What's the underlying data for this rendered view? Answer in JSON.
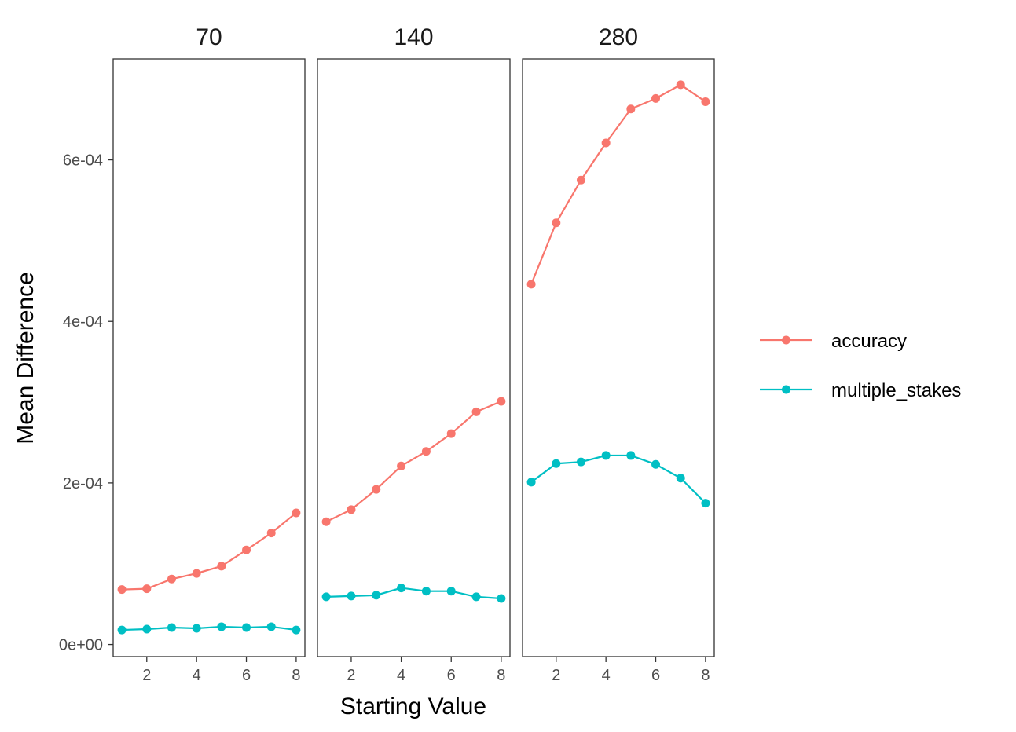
{
  "chart_data": {
    "type": "line",
    "xlabel": "Starting Value",
    "ylabel": "Mean Difference",
    "x": [
      1,
      2,
      3,
      4,
      5,
      6,
      7,
      8
    ],
    "xticks": [
      "2",
      "4",
      "6",
      "8"
    ],
    "xtick_values": [
      2,
      4,
      6,
      8
    ],
    "xlim": [
      0.65,
      8.35
    ],
    "ylim": [
      -1.5e-05,
      0.000725
    ],
    "yticks": [
      "0e+00",
      "2e-04",
      "4e-04",
      "6e-04"
    ],
    "ytick_values": [
      0,
      0.0002,
      0.0004,
      0.0006
    ],
    "grid": false,
    "legend_position": "right",
    "series_meta": [
      {
        "name": "accuracy",
        "color": "#F8766D"
      },
      {
        "name": "multiple_stakes",
        "color": "#00BFC4"
      }
    ],
    "panels": [
      {
        "title": "70",
        "series": [
          {
            "name": "accuracy",
            "values": [
              6.8e-05,
              6.9e-05,
              8.1e-05,
              8.8e-05,
              9.7e-05,
              0.000117,
              0.000138,
              0.000163
            ]
          },
          {
            "name": "multiple_stakes",
            "values": [
              1.8e-05,
              1.9e-05,
              2.1e-05,
              2e-05,
              2.2e-05,
              2.1e-05,
              2.2e-05,
              1.8e-05
            ]
          }
        ]
      },
      {
        "title": "140",
        "series": [
          {
            "name": "accuracy",
            "values": [
              0.000152,
              0.000167,
              0.000192,
              0.000221,
              0.000239,
              0.000261,
              0.000288,
              0.000301
            ]
          },
          {
            "name": "multiple_stakes",
            "values": [
              5.9e-05,
              6e-05,
              6.1e-05,
              7e-05,
              6.6e-05,
              6.6e-05,
              5.9e-05,
              5.7e-05
            ]
          }
        ]
      },
      {
        "title": "280",
        "series": [
          {
            "name": "accuracy",
            "values": [
              0.000446,
              0.000522,
              0.000575,
              0.000621,
              0.000663,
              0.000676,
              0.000693,
              0.000672
            ]
          },
          {
            "name": "multiple_stakes",
            "values": [
              0.000201,
              0.000224,
              0.000226,
              0.000234,
              0.000234,
              0.000223,
              0.000206,
              0.000175
            ]
          }
        ]
      }
    ]
  }
}
